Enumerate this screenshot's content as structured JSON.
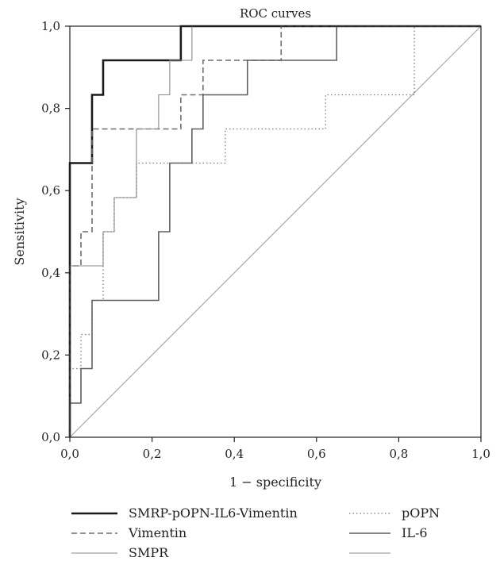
{
  "chart_data": {
    "type": "line",
    "title": "ROC curves",
    "xlabel": "1 − specificity",
    "ylabel": "Sensitivity",
    "xlim": [
      0,
      1
    ],
    "ylim": [
      0,
      1
    ],
    "grid": false,
    "legend_position": "bottom",
    "x_ticks": [
      "0,0",
      "0,2",
      "0,4",
      "0,6",
      "0,8",
      "1,0"
    ],
    "y_ticks": [
      "0,0",
      "0,2",
      "0,4",
      "0,6",
      "0,8",
      "1,0"
    ],
    "series": [
      {
        "name": "SMRP-pOPN-IL6-Vimentin",
        "color": "#1a1a1a",
        "style": "solid-thick",
        "points": [
          [
            0,
            0
          ],
          [
            0,
            0.667
          ],
          [
            0.054,
            0.667
          ],
          [
            0.054,
            0.833
          ],
          [
            0.081,
            0.833
          ],
          [
            0.081,
            0.917
          ],
          [
            0.27,
            0.917
          ],
          [
            0.27,
            1.0
          ],
          [
            1,
            1.0
          ]
        ]
      },
      {
        "name": "Vimentin",
        "color": "#6d6d6d",
        "style": "dashed",
        "points": [
          [
            0,
            0
          ],
          [
            0,
            0.417
          ],
          [
            0.027,
            0.417
          ],
          [
            0.027,
            0.5
          ],
          [
            0.054,
            0.5
          ],
          [
            0.054,
            0.75
          ],
          [
            0.27,
            0.75
          ],
          [
            0.27,
            0.833
          ],
          [
            0.324,
            0.833
          ],
          [
            0.324,
            0.917
          ],
          [
            0.514,
            0.917
          ],
          [
            0.514,
            1.0
          ],
          [
            1,
            1.0
          ]
        ]
      },
      {
        "name": "SMPR",
        "color": "#8a8a8a",
        "style": "solid-thin",
        "points": [
          [
            0,
            0
          ],
          [
            0,
            0.417
          ],
          [
            0.081,
            0.417
          ],
          [
            0.081,
            0.5
          ],
          [
            0.108,
            0.5
          ],
          [
            0.108,
            0.583
          ],
          [
            0.162,
            0.583
          ],
          [
            0.162,
            0.75
          ],
          [
            0.216,
            0.75
          ],
          [
            0.216,
            0.833
          ],
          [
            0.243,
            0.833
          ],
          [
            0.243,
            0.917
          ],
          [
            0.297,
            0.917
          ],
          [
            0.297,
            1.0
          ],
          [
            1,
            1.0
          ]
        ]
      },
      {
        "name": "pOPN",
        "color": "#7a7a7a",
        "style": "dotted",
        "points": [
          [
            0,
            0
          ],
          [
            0,
            0.167
          ],
          [
            0.027,
            0.167
          ],
          [
            0.027,
            0.25
          ],
          [
            0.054,
            0.25
          ],
          [
            0.054,
            0.333
          ],
          [
            0.081,
            0.333
          ],
          [
            0.081,
            0.5
          ],
          [
            0.108,
            0.5
          ],
          [
            0.108,
            0.583
          ],
          [
            0.162,
            0.583
          ],
          [
            0.162,
            0.667
          ],
          [
            0.378,
            0.667
          ],
          [
            0.378,
            0.75
          ],
          [
            0.622,
            0.75
          ],
          [
            0.622,
            0.833
          ],
          [
            0.838,
            0.833
          ],
          [
            0.838,
            1.0
          ],
          [
            1,
            1.0
          ]
        ]
      },
      {
        "name": "IL-6",
        "color": "#5f5f5f",
        "style": "solid-medium",
        "points": [
          [
            0,
            0
          ],
          [
            0,
            0.083
          ],
          [
            0.027,
            0.083
          ],
          [
            0.027,
            0.167
          ],
          [
            0.054,
            0.167
          ],
          [
            0.054,
            0.333
          ],
          [
            0.216,
            0.333
          ],
          [
            0.216,
            0.5
          ],
          [
            0.243,
            0.5
          ],
          [
            0.243,
            0.667
          ],
          [
            0.297,
            0.667
          ],
          [
            0.297,
            0.75
          ],
          [
            0.324,
            0.75
          ],
          [
            0.324,
            0.833
          ],
          [
            0.432,
            0.833
          ],
          [
            0.432,
            0.917
          ],
          [
            0.649,
            0.917
          ],
          [
            0.649,
            1.0
          ],
          [
            1,
            1.0
          ]
        ]
      },
      {
        "name": "",
        "color": "#a8a8a8",
        "style": "reference",
        "points": [
          [
            0,
            0
          ],
          [
            1,
            1
          ]
        ]
      }
    ]
  }
}
